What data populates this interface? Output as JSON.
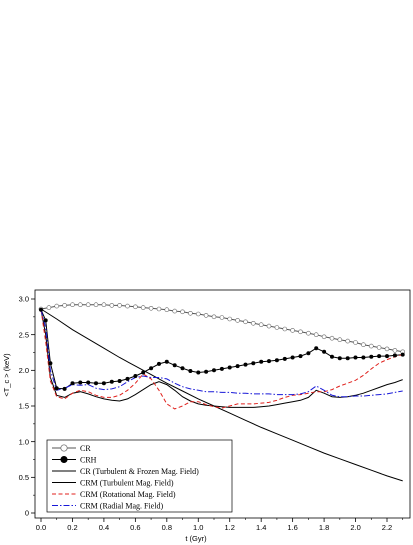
{
  "chart_data": {
    "type": "line",
    "xlabel": "t (Gyr)",
    "ylabel": "<T_c > (keV)",
    "xlim": [
      0.0,
      2.35
    ],
    "ylim": [
      0.0,
      3.0
    ],
    "xticks": [
      "0.0",
      "0.2",
      "0.4",
      "0.6",
      "0.8",
      "1.0",
      "1.2",
      "1.4",
      "1.6",
      "1.8",
      "2.0",
      "2.2"
    ],
    "yticks": [
      "0",
      "0.5",
      "1.0",
      "1.5",
      "2.0",
      "2.5",
      "3.0"
    ],
    "legend_position": "bottom-left",
    "series": [
      {
        "name": "CR",
        "style": "solid",
        "color": "#555555",
        "marker": "open-circle",
        "x": [
          0.0,
          0.05,
          0.1,
          0.15,
          0.2,
          0.25,
          0.3,
          0.35,
          0.4,
          0.45,
          0.5,
          0.55,
          0.6,
          0.65,
          0.7,
          0.75,
          0.8,
          0.85,
          0.9,
          0.95,
          1.0,
          1.05,
          1.1,
          1.15,
          1.2,
          1.25,
          1.3,
          1.35,
          1.4,
          1.45,
          1.5,
          1.55,
          1.6,
          1.65,
          1.7,
          1.75,
          1.8,
          1.85,
          1.9,
          1.95,
          2.0,
          2.05,
          2.1,
          2.15,
          2.2,
          2.25,
          2.3
        ],
        "y": [
          2.86,
          2.88,
          2.9,
          2.91,
          2.92,
          2.92,
          2.92,
          2.92,
          2.92,
          2.91,
          2.91,
          2.9,
          2.89,
          2.88,
          2.87,
          2.86,
          2.85,
          2.83,
          2.82,
          2.8,
          2.79,
          2.77,
          2.75,
          2.74,
          2.72,
          2.7,
          2.68,
          2.66,
          2.64,
          2.62,
          2.6,
          2.58,
          2.56,
          2.54,
          2.52,
          2.5,
          2.47,
          2.45,
          2.43,
          2.41,
          2.39,
          2.36,
          2.34,
          2.32,
          2.3,
          2.28,
          2.26
        ]
      },
      {
        "name": "CRH",
        "style": "solid",
        "color": "#000000",
        "marker": "filled-circle",
        "x": [
          0.0,
          0.03,
          0.06,
          0.1,
          0.15,
          0.2,
          0.25,
          0.3,
          0.35,
          0.4,
          0.45,
          0.5,
          0.55,
          0.6,
          0.65,
          0.7,
          0.75,
          0.8,
          0.85,
          0.9,
          0.95,
          1.0,
          1.05,
          1.1,
          1.15,
          1.2,
          1.25,
          1.3,
          1.35,
          1.4,
          1.45,
          1.5,
          1.55,
          1.6,
          1.65,
          1.7,
          1.75,
          1.8,
          1.85,
          1.9,
          1.95,
          2.0,
          2.05,
          2.1,
          2.15,
          2.2,
          2.25,
          2.3
        ],
        "y": [
          2.85,
          2.7,
          2.1,
          1.75,
          1.74,
          1.82,
          1.83,
          1.83,
          1.82,
          1.82,
          1.84,
          1.85,
          1.88,
          1.92,
          1.97,
          2.03,
          2.09,
          2.12,
          2.07,
          2.03,
          1.99,
          1.97,
          1.98,
          2.0,
          2.02,
          2.04,
          2.06,
          2.08,
          2.1,
          2.12,
          2.13,
          2.14,
          2.16,
          2.18,
          2.2,
          2.24,
          2.31,
          2.26,
          2.19,
          2.17,
          2.17,
          2.18,
          2.18,
          2.19,
          2.2,
          2.2,
          2.21,
          2.22
        ]
      },
      {
        "name": "CR (Turbulent & Frozen Mag. Field)",
        "style": "solid",
        "color": "#000000",
        "marker": "none",
        "x": [
          0.0,
          0.1,
          0.2,
          0.3,
          0.4,
          0.5,
          0.6,
          0.7,
          0.8,
          0.9,
          1.0,
          1.1,
          1.2,
          1.3,
          1.4,
          1.5,
          1.6,
          1.7,
          1.8,
          1.9,
          2.0,
          2.1,
          2.2,
          2.3
        ],
        "y": [
          2.86,
          2.72,
          2.57,
          2.44,
          2.31,
          2.18,
          2.06,
          1.94,
          1.82,
          1.71,
          1.6,
          1.5,
          1.4,
          1.3,
          1.2,
          1.11,
          1.02,
          0.93,
          0.84,
          0.76,
          0.68,
          0.6,
          0.52,
          0.45
        ]
      },
      {
        "name": "CRM (Turbulent Mag. Field)",
        "style": "solid",
        "color": "#000000",
        "marker": "none",
        "x": [
          0.0,
          0.03,
          0.06,
          0.1,
          0.15,
          0.2,
          0.25,
          0.3,
          0.35,
          0.4,
          0.45,
          0.5,
          0.55,
          0.6,
          0.65,
          0.7,
          0.75,
          0.8,
          0.85,
          0.9,
          0.95,
          1.0,
          1.05,
          1.1,
          1.15,
          1.2,
          1.25,
          1.3,
          1.35,
          1.4,
          1.45,
          1.5,
          1.55,
          1.6,
          1.65,
          1.7,
          1.75,
          1.8,
          1.85,
          1.9,
          1.95,
          2.0,
          2.05,
          2.1,
          2.15,
          2.2,
          2.25,
          2.3
        ],
        "y": [
          2.85,
          2.5,
          1.9,
          1.65,
          1.62,
          1.68,
          1.7,
          1.67,
          1.63,
          1.6,
          1.58,
          1.57,
          1.6,
          1.66,
          1.73,
          1.8,
          1.84,
          1.8,
          1.72,
          1.63,
          1.57,
          1.53,
          1.51,
          1.5,
          1.49,
          1.48,
          1.48,
          1.48,
          1.48,
          1.49,
          1.5,
          1.52,
          1.54,
          1.56,
          1.58,
          1.62,
          1.72,
          1.68,
          1.63,
          1.62,
          1.63,
          1.65,
          1.68,
          1.72,
          1.76,
          1.8,
          1.83,
          1.87
        ]
      },
      {
        "name": "CRM (Rotational Mag. Field)",
        "style": "dashed",
        "color": "#e0201c",
        "marker": "none",
        "x": [
          0.0,
          0.03,
          0.06,
          0.1,
          0.15,
          0.2,
          0.25,
          0.3,
          0.35,
          0.4,
          0.45,
          0.5,
          0.55,
          0.6,
          0.65,
          0.7,
          0.75,
          0.8,
          0.85,
          0.9,
          0.95,
          1.0,
          1.05,
          1.1,
          1.15,
          1.2,
          1.25,
          1.3,
          1.35,
          1.4,
          1.45,
          1.5,
          1.55,
          1.6,
          1.65,
          1.7,
          1.75,
          1.8,
          1.85,
          1.9,
          1.95,
          2.0,
          2.05,
          2.1,
          2.15,
          2.2,
          2.25,
          2.3
        ],
        "y": [
          2.85,
          2.4,
          1.85,
          1.63,
          1.6,
          1.68,
          1.72,
          1.7,
          1.65,
          1.62,
          1.62,
          1.65,
          1.72,
          1.82,
          1.95,
          1.88,
          1.72,
          1.53,
          1.46,
          1.5,
          1.56,
          1.56,
          1.52,
          1.49,
          1.47,
          1.5,
          1.53,
          1.53,
          1.53,
          1.54,
          1.55,
          1.58,
          1.62,
          1.65,
          1.66,
          1.68,
          1.7,
          1.7,
          1.73,
          1.78,
          1.82,
          1.86,
          1.93,
          2.02,
          2.1,
          2.15,
          2.19,
          2.22
        ]
      },
      {
        "name": "CRM (Radial Mag. Field)",
        "style": "dashdot",
        "color": "#1818d8",
        "marker": "none",
        "x": [
          0.0,
          0.03,
          0.06,
          0.1,
          0.15,
          0.2,
          0.25,
          0.3,
          0.35,
          0.4,
          0.45,
          0.5,
          0.55,
          0.6,
          0.65,
          0.7,
          0.75,
          0.8,
          0.85,
          0.9,
          0.95,
          1.0,
          1.05,
          1.1,
          1.15,
          1.2,
          1.25,
          1.3,
          1.35,
          1.4,
          1.45,
          1.5,
          1.55,
          1.6,
          1.65,
          1.7,
          1.75,
          1.8,
          1.85,
          1.9,
          1.95,
          2.0,
          2.05,
          2.1,
          2.15,
          2.2,
          2.25,
          2.3
        ],
        "y": [
          2.85,
          2.6,
          2.0,
          1.72,
          1.75,
          1.8,
          1.79,
          1.8,
          1.75,
          1.73,
          1.74,
          1.77,
          1.84,
          1.9,
          1.92,
          1.9,
          1.9,
          1.88,
          1.82,
          1.77,
          1.74,
          1.72,
          1.7,
          1.7,
          1.69,
          1.69,
          1.68,
          1.68,
          1.67,
          1.67,
          1.67,
          1.66,
          1.66,
          1.66,
          1.67,
          1.7,
          1.78,
          1.72,
          1.65,
          1.63,
          1.63,
          1.64,
          1.64,
          1.65,
          1.66,
          1.67,
          1.69,
          1.71
        ]
      }
    ]
  }
}
